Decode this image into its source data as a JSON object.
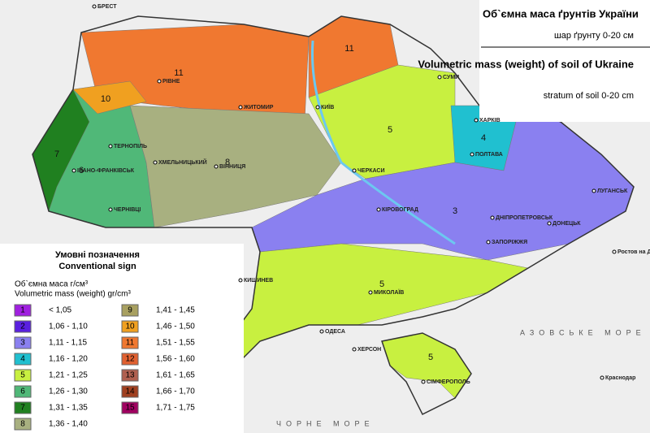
{
  "title": {
    "ua": "Об`ємна маса ґрунтів України",
    "ua_sub": "шар ґрунту 0-20 см",
    "en": "Volumetric mass (weight) of soil of Ukraine",
    "en_sub": "stratum of soil 0-20 cm"
  },
  "legend": {
    "title_ua": "Умовні позначення",
    "title_en": "Conventional sign",
    "unit_ua": "Об`ємна маса г/см³",
    "unit_en": "Volumetric mass (weight) gr/cm³",
    "items": [
      {
        "class": "1",
        "range": "< 1,05",
        "color": "#a020e0"
      },
      {
        "class": "2",
        "range": "1,06 - 1,10",
        "color": "#5a20e0"
      },
      {
        "class": "3",
        "range": "1,11 - 1,15",
        "color": "#8a80f0"
      },
      {
        "class": "4",
        "range": "1,16 - 1,20",
        "color": "#20c0d0"
      },
      {
        "class": "5",
        "range": "1,21 - 1,25",
        "color": "#c8f040"
      },
      {
        "class": "6",
        "range": "1,26 - 1,30",
        "color": "#50b878"
      },
      {
        "class": "7",
        "range": "1,31 - 1,35",
        "color": "#208020"
      },
      {
        "class": "8",
        "range": "1,36 - 1,40",
        "color": "#a8b080"
      },
      {
        "class": "9",
        "range": "1,41 - 1,45",
        "color": "#a8a060"
      },
      {
        "class": "10",
        "range": "1,46 - 1,50",
        "color": "#f0a020"
      },
      {
        "class": "11",
        "range": "1,51 - 1,55",
        "color": "#f07830"
      },
      {
        "class": "12",
        "range": "1,56 - 1,60",
        "color": "#e06030"
      },
      {
        "class": "13",
        "range": "1,61 - 1,65",
        "color": "#b06050"
      },
      {
        "class": "14",
        "range": "1,66 - 1,70",
        "color": "#a04020"
      },
      {
        "class": "15",
        "range": "1,71 - 1,75",
        "color": "#a00060"
      }
    ]
  },
  "zones": [
    "11",
    "11",
    "6",
    "8",
    "5",
    "4",
    "3",
    "5",
    "5",
    "7",
    "10"
  ],
  "cities": [
    "КИЇВ",
    "ЖИТОМИР",
    "РІВНЕ",
    "ТЕРНОПІЛЬ",
    "ХМЕЛЬНИЦЬКИЙ",
    "ВІННИЦЯ",
    "ІВАНО-ФРАНКІВСЬК",
    "ЧЕРНІВЦІ",
    "ЧЕРКАСИ",
    "КІРОВОГРАД",
    "ПОЛТАВА",
    "СУМИ",
    "ХАРКІВ",
    "ДНІПРОПЕТРОВСЬК",
    "ДОНЕЦЬК",
    "ЛУГАНСЬК",
    "ЗАПОРІЖЖЯ",
    "МИКОЛАЇВ",
    "ОДЕСА",
    "ХЕРСОН",
    "СІМФЕРОПОЛЬ",
    "КИШИНЕВ",
    "Ростов на Дону",
    "Краснодар",
    "БРЕСТ"
  ],
  "seas": [
    "ЧОРНЕ МОРЕ",
    "АЗОВСЬКЕ МОРЕ"
  ]
}
